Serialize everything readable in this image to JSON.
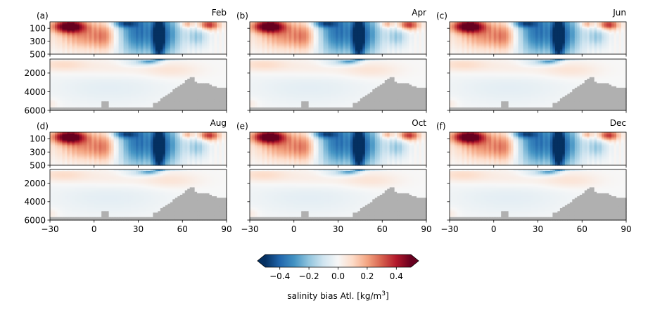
{
  "chart_data": {
    "type": "heatmap",
    "description_units": {
      "x": "latitude (degrees)",
      "y": "depth (m)"
    },
    "xlim": [
      -30,
      90
    ],
    "x_ticks": [
      -30,
      0,
      30,
      60,
      90
    ],
    "x_tick_labels": [
      "−30",
      "0",
      "30",
      "60",
      "90"
    ],
    "upper_ylim": [
      500,
      0
    ],
    "upper_y_ticks": [
      100,
      300,
      500
    ],
    "upper_y_tick_labels": [
      "100",
      "300",
      "500"
    ],
    "lower_ylim": [
      6000,
      500
    ],
    "lower_y_ticks": [
      2000,
      4000,
      6000
    ],
    "lower_y_tick_labels": [
      "2000",
      "4000",
      "6000"
    ],
    "clim": [
      -0.5,
      0.5
    ],
    "colormap": "RdBu_r",
    "bathymetry_color": "#b0b0b0",
    "panels": [
      {
        "letter": "(a)",
        "month": "Feb",
        "intensity": 1.0
      },
      {
        "letter": "(b)",
        "month": "Apr",
        "intensity": 1.0
      },
      {
        "letter": "(c)",
        "month": "Jun",
        "intensity": 1.0
      },
      {
        "letter": "(d)",
        "month": "Aug",
        "intensity": 1.0
      },
      {
        "letter": "(e)",
        "month": "Oct",
        "intensity": 1.0
      },
      {
        "letter": "(f)",
        "month": "Dec",
        "intensity": 1.0
      }
    ],
    "colorbar": {
      "ticks": [
        -0.4,
        -0.2,
        0.0,
        0.2,
        0.4
      ],
      "tick_labels": [
        "−0.4",
        "−0.2",
        "0.0",
        "0.2",
        "0.4"
      ],
      "label_main": "salinity bias Atl. [kg/m",
      "label_sup": "3",
      "label_end": "]",
      "extend": "both"
    }
  }
}
